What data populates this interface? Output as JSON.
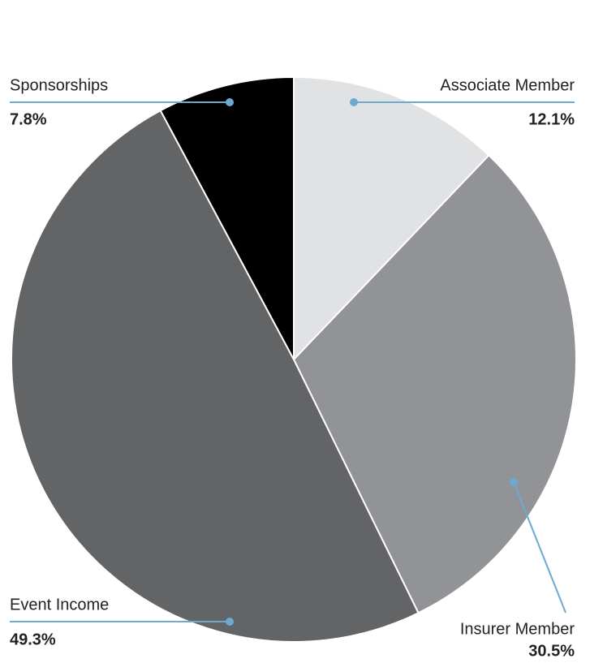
{
  "chart_data": {
    "type": "pie",
    "categories": [
      "Associate Member",
      "Insurer Member",
      "Event Income",
      "Sponsorships"
    ],
    "values": [
      12.1,
      30.5,
      49.3,
      7.8
    ],
    "value_labels": [
      "12.1%",
      "30.5%",
      "49.3%",
      "7.8%"
    ],
    "colors": [
      "#e1e2e3",
      "#929396",
      "#636466",
      "#000000"
    ]
  }
}
